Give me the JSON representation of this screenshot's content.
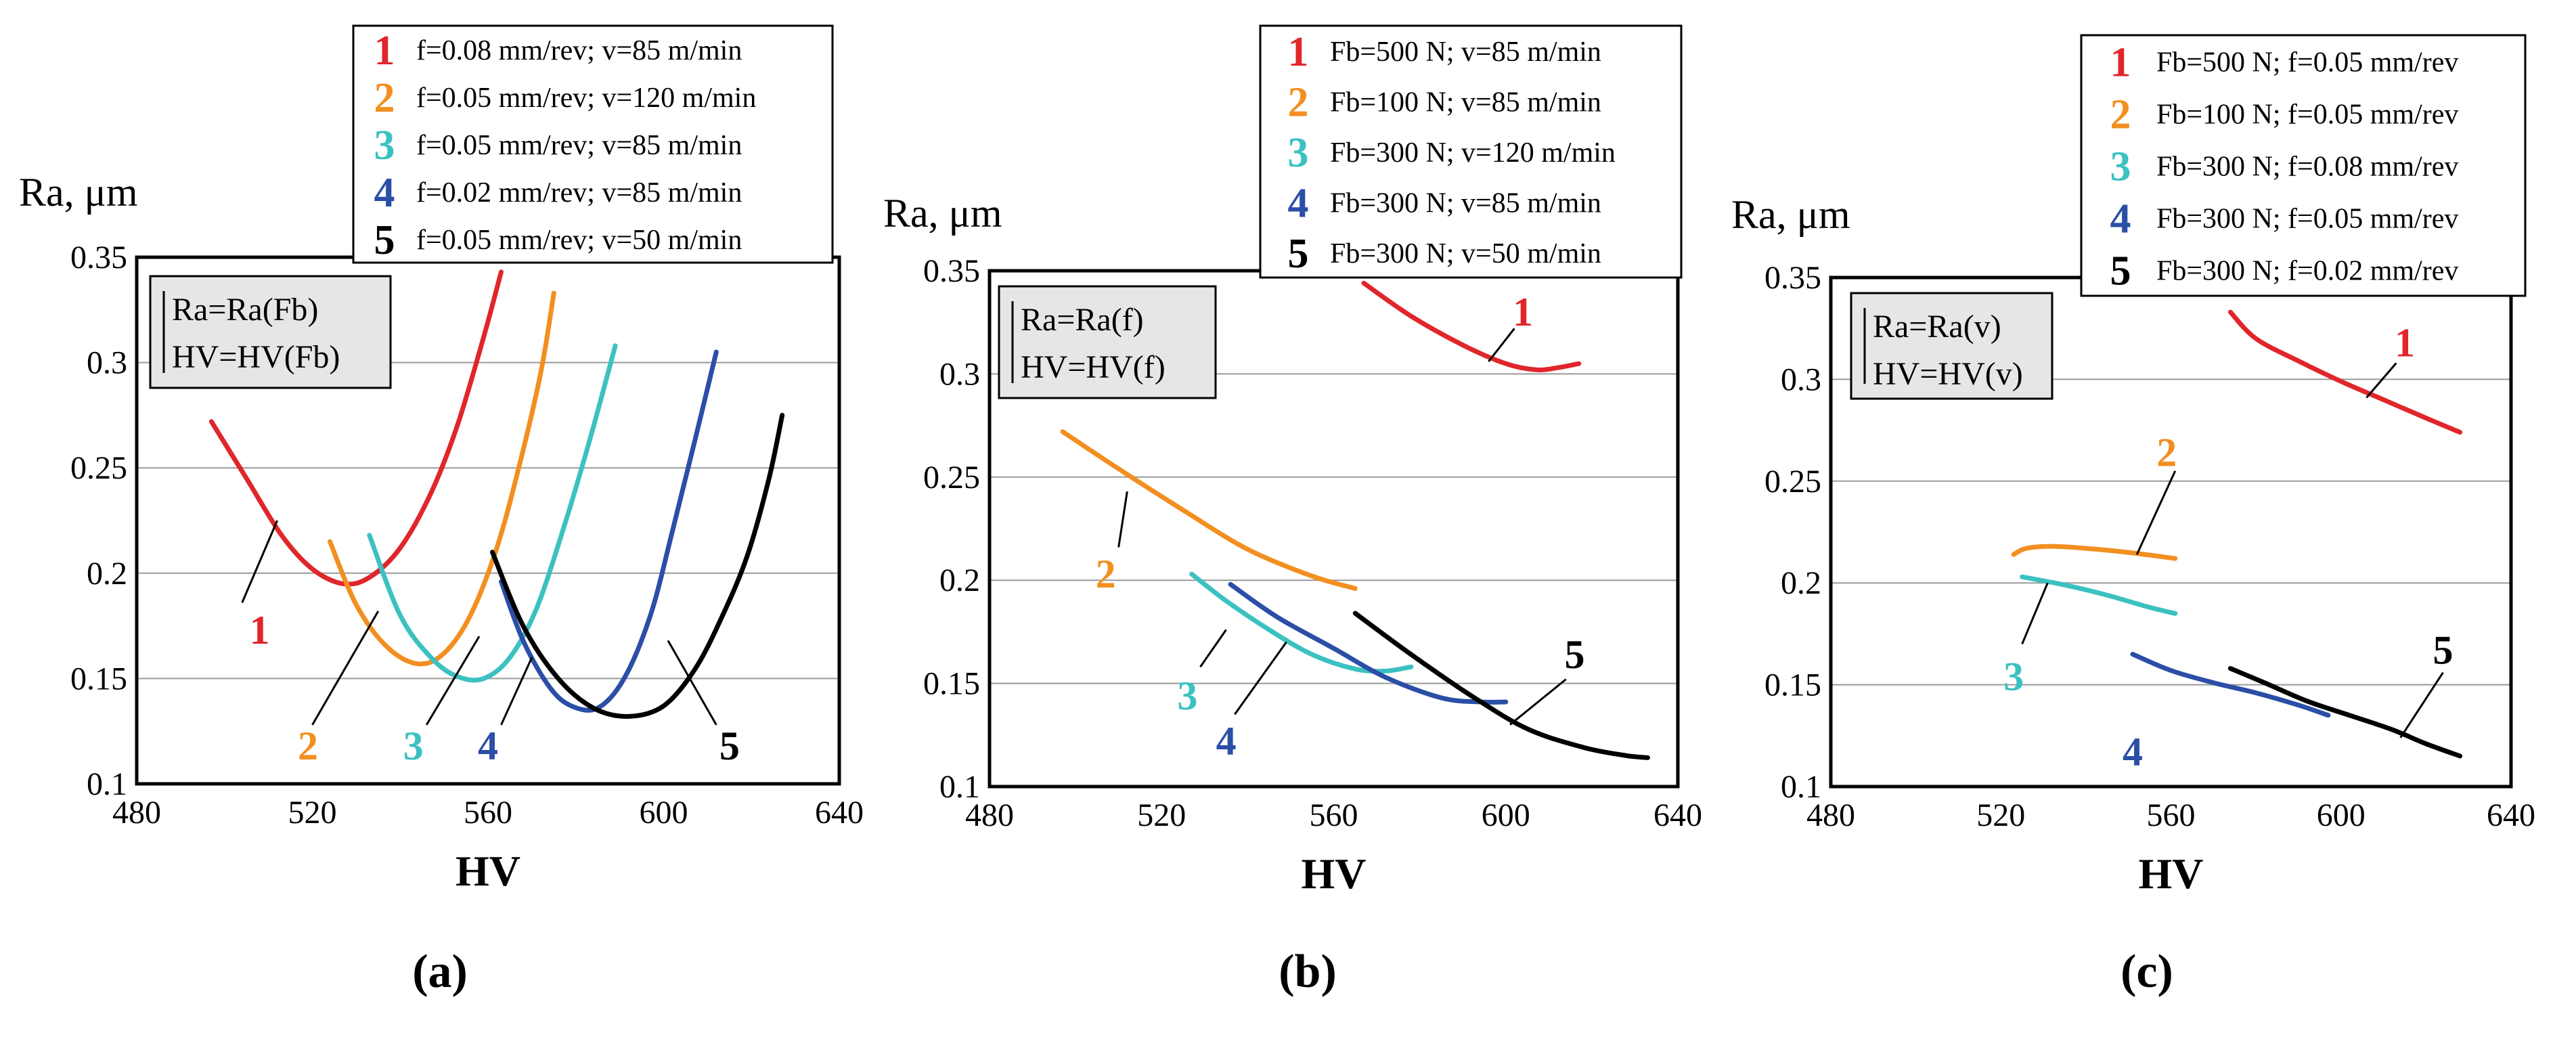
{
  "colors": {
    "s1": "#e0262b",
    "s2": "#f28f20",
    "s3": "#3cc1c1",
    "s4": "#2b4ea6",
    "s5": "#000000"
  },
  "chart_data": [
    {
      "type": "line",
      "panel_label": "(a)",
      "ylabel": "Ra, μm",
      "xlabel": "HV",
      "xlim": [
        480,
        640
      ],
      "ylim": [
        0.1,
        0.35
      ],
      "xticks": [
        480,
        520,
        560,
        600,
        640
      ],
      "yticks": [
        0.1,
        0.15,
        0.2,
        0.25,
        0.3,
        0.35
      ],
      "xtick_labels": [
        "480",
        "520",
        "560",
        "600",
        "640"
      ],
      "ytick_labels": [
        "0.1",
        "0.15",
        "0.2",
        "0.25",
        "0.3",
        "0.35"
      ],
      "relation_lines": [
        "Ra=Ra(Fb)",
        "HV=HV(Fb)"
      ],
      "legend": [
        {
          "num": "1",
          "text": "f=0.08 mm/rev; v=85 m/min"
        },
        {
          "num": "2",
          "text": "f=0.05 mm/rev; v=120 m/min"
        },
        {
          "num": "3",
          "text": "f=0.05 mm/rev; v=85 m/min"
        },
        {
          "num": "4",
          "text": "f=0.02 mm/rev; v=85 m/min"
        },
        {
          "num": "5",
          "text": "f=0.05 mm/rev; v=50 m/min"
        }
      ],
      "series": [
        {
          "name": "1",
          "x": [
            497,
            505,
            513,
            520,
            527,
            533,
            540,
            547,
            553,
            559,
            563
          ],
          "y": [
            0.272,
            0.245,
            0.218,
            0.202,
            0.195,
            0.198,
            0.212,
            0.238,
            0.27,
            0.312,
            0.343
          ],
          "label_at": [
            508,
            0.173
          ],
          "leader": [
            [
              504,
              0.186
            ],
            [
              512,
              0.225
            ]
          ]
        },
        {
          "name": "2",
          "x": [
            524,
            530,
            537,
            544,
            550,
            556,
            562,
            567,
            572,
            575
          ],
          "y": [
            0.215,
            0.185,
            0.165,
            0.157,
            0.162,
            0.18,
            0.212,
            0.25,
            0.295,
            0.333
          ],
          "label_at": [
            519,
            0.118
          ],
          "leader": [
            [
              520,
              0.128
            ],
            [
              535,
              0.182
            ]
          ]
        },
        {
          "name": "3",
          "x": [
            533,
            540,
            547,
            553,
            559,
            565,
            571,
            577,
            583,
            589
          ],
          "y": [
            0.218,
            0.18,
            0.16,
            0.151,
            0.15,
            0.16,
            0.183,
            0.22,
            0.262,
            0.308
          ],
          "label_at": [
            543,
            0.118
          ],
          "leader": [
            [
              546,
              0.128
            ],
            [
              558,
              0.17
            ]
          ]
        },
        {
          "name": "4",
          "x": [
            563,
            568,
            574,
            579,
            585,
            591,
            597,
            602,
            607,
            612
          ],
          "y": [
            0.196,
            0.168,
            0.146,
            0.137,
            0.136,
            0.15,
            0.18,
            0.22,
            0.262,
            0.305
          ],
          "label_at": [
            560,
            0.118
          ],
          "leader": [
            [
              563,
              0.128
            ],
            [
              570,
              0.16
            ]
          ]
        },
        {
          "name": "5",
          "x": [
            561,
            568,
            576,
            584,
            592,
            600,
            607,
            613,
            619,
            624,
            627
          ],
          "y": [
            0.21,
            0.175,
            0.15,
            0.136,
            0.132,
            0.137,
            0.154,
            0.178,
            0.208,
            0.245,
            0.275
          ],
          "label_at": [
            615,
            0.118
          ],
          "leader": [
            [
              612,
              0.128
            ],
            [
              601,
              0.168
            ]
          ]
        }
      ]
    },
    {
      "type": "line",
      "panel_label": "(b)",
      "ylabel": "Ra, μm",
      "xlabel": "HV",
      "xlim": [
        480,
        640
      ],
      "ylim": [
        0.1,
        0.35
      ],
      "xticks": [
        480,
        520,
        560,
        600,
        640
      ],
      "yticks": [
        0.1,
        0.15,
        0.2,
        0.25,
        0.3,
        0.35
      ],
      "xtick_labels": [
        "480",
        "520",
        "560",
        "600",
        "640"
      ],
      "ytick_labels": [
        "0.1",
        "0.15",
        "0.2",
        "0.25",
        "0.3",
        "0.35"
      ],
      "relation_lines": [
        "Ra=Ra(f)",
        "HV=HV(f)"
      ],
      "legend": [
        {
          "num": "1",
          "text": "Fb=500 N; v=85 m/min"
        },
        {
          "num": "2",
          "text": "Fb=100 N; v=85 m/min"
        },
        {
          "num": "3",
          "text": "Fb=300 N; v=120 m/min"
        },
        {
          "num": "4",
          "text": "Fb=300 N; v=85 m/min"
        },
        {
          "num": "5",
          "text": "Fb=300 N; v=50 m/min"
        }
      ],
      "series": [
        {
          "name": "1",
          "x": [
            567,
            578,
            590,
            600,
            607,
            612,
            617
          ],
          "y": [
            0.344,
            0.328,
            0.314,
            0.305,
            0.302,
            0.303,
            0.305
          ],
          "label_at": [
            604,
            0.33
          ],
          "leader": [
            [
              602,
              0.322
            ],
            [
              596,
              0.306
            ]
          ]
        },
        {
          "name": "2",
          "x": [
            497,
            510,
            525,
            540,
            555,
            565
          ],
          "y": [
            0.272,
            0.254,
            0.234,
            0.215,
            0.202,
            0.196
          ],
          "label_at": [
            507,
            0.203
          ],
          "leader": [
            [
              510,
              0.216
            ],
            [
              512,
              0.243
            ]
          ]
        },
        {
          "name": "3",
          "x": [
            527,
            535,
            545,
            555,
            565,
            572,
            578
          ],
          "y": [
            0.203,
            0.19,
            0.176,
            0.164,
            0.157,
            0.156,
            0.158
          ],
          "label_at": [
            526,
            0.144
          ],
          "leader": [
            [
              529,
              0.158
            ],
            [
              535,
              0.176
            ]
          ]
        },
        {
          "name": "4",
          "x": [
            536,
            547,
            560,
            572,
            585,
            594,
            600
          ],
          "y": [
            0.198,
            0.182,
            0.167,
            0.153,
            0.143,
            0.141,
            0.141
          ],
          "label_at": [
            535,
            0.122
          ],
          "leader": [
            [
              537,
              0.135
            ],
            [
              549,
              0.17
            ]
          ]
        },
        {
          "name": "5",
          "x": [
            565,
            578,
            592,
            605,
            618,
            628,
            633
          ],
          "y": [
            0.184,
            0.164,
            0.144,
            0.128,
            0.119,
            0.115,
            0.114
          ],
          "label_at": [
            616,
            0.164
          ],
          "leader": [
            [
              614,
              0.152
            ],
            [
              601,
              0.13
            ]
          ]
        }
      ]
    },
    {
      "type": "line",
      "panel_label": "(c)",
      "ylabel": "Ra, μm",
      "xlabel": "HV",
      "xlim": [
        480,
        640
      ],
      "ylim": [
        0.1,
        0.35
      ],
      "xticks": [
        480,
        520,
        560,
        600,
        640
      ],
      "yticks": [
        0.1,
        0.15,
        0.2,
        0.25,
        0.3,
        0.35
      ],
      "xtick_labels": [
        "480",
        "520",
        "560",
        "600",
        "640"
      ],
      "ytick_labels": [
        "0.1",
        "0.15",
        "0.2",
        "0.25",
        "0.3",
        "0.35"
      ],
      "relation_lines": [
        "Ra=Ra(v)",
        "HV=HV(v)"
      ],
      "legend": [
        {
          "num": "1",
          "text": "Fb=500 N; f=0.05 mm/rev"
        },
        {
          "num": "2",
          "text": "Fb=100 N; f=0.05 mm/rev"
        },
        {
          "num": "3",
          "text": "Fb=300 N; f=0.08 mm/rev"
        },
        {
          "num": "4",
          "text": "Fb=300 N; f=0.05 mm/rev"
        },
        {
          "num": "5",
          "text": "Fb=300 N; f=0.02 mm/rev"
        }
      ],
      "series": [
        {
          "name": "1",
          "x": [
            574,
            580,
            590,
            600,
            610,
            620,
            628
          ],
          "y": [
            0.333,
            0.32,
            0.309,
            0.299,
            0.29,
            0.281,
            0.274
          ],
          "label_at": [
            615,
            0.318
          ],
          "leader": [
            [
              613,
              0.308
            ],
            [
              606,
              0.291
            ]
          ]
        },
        {
          "name": "2",
          "x": [
            523,
            526,
            532,
            540,
            550,
            561
          ],
          "y": [
            0.214,
            0.217,
            0.218,
            0.217,
            0.215,
            0.212
          ],
          "label_at": [
            559,
            0.264
          ],
          "leader": [
            [
              561,
              0.255
            ],
            [
              552,
              0.214
            ]
          ]
        },
        {
          "name": "3",
          "x": [
            525,
            535,
            545,
            555,
            561
          ],
          "y": [
            0.203,
            0.199,
            0.194,
            0.188,
            0.185
          ],
          "label_at": [
            523,
            0.154
          ],
          "leader": [
            [
              525,
              0.17
            ],
            [
              531,
              0.2
            ]
          ]
        },
        {
          "name": "4",
          "x": [
            551,
            560,
            570,
            580,
            590,
            597
          ],
          "y": [
            0.165,
            0.157,
            0.151,
            0.146,
            0.14,
            0.135
          ],
          "label_at": [
            551,
            0.117
          ],
          "leader": null
        },
        {
          "name": "5",
          "x": [
            574,
            582,
            592,
            602,
            612,
            620,
            628
          ],
          "y": [
            0.158,
            0.151,
            0.142,
            0.135,
            0.128,
            0.121,
            0.115
          ],
          "label_at": [
            624,
            0.167
          ],
          "leader": [
            [
              624,
              0.156
            ],
            [
              614,
              0.124
            ]
          ]
        }
      ]
    }
  ]
}
